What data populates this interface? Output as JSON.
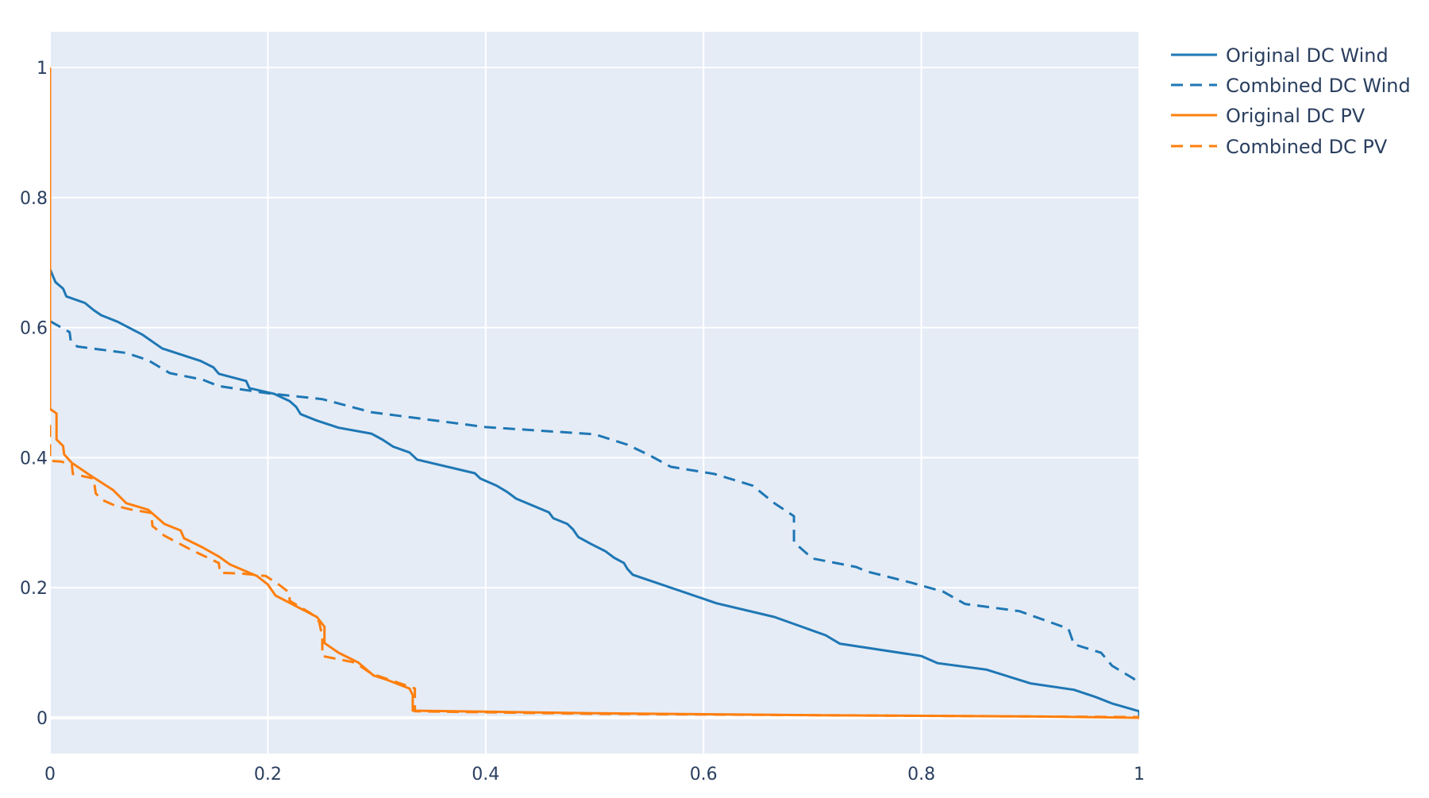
{
  "chart_data": {
    "type": "line",
    "title": "",
    "xlabel": "",
    "ylabel": "",
    "xlim": [
      0,
      1
    ],
    "ylim": [
      -0.055,
      1.055
    ],
    "grid": true,
    "legend_position": "top-right",
    "colors": {
      "wind": "#1f77b4",
      "pv": "#ff7f0e",
      "plot_background": "#e5ecf6",
      "grid": "#ffffff",
      "text": "#2a3f5f"
    },
    "x_ticks": [
      {
        "value": 0,
        "label": "0"
      },
      {
        "value": 0.2,
        "label": "0.2"
      },
      {
        "value": 0.4,
        "label": "0.4"
      },
      {
        "value": 0.6,
        "label": "0.6"
      },
      {
        "value": 0.8,
        "label": "0.8"
      },
      {
        "value": 1,
        "label": "1"
      }
    ],
    "y_ticks": [
      {
        "value": 0,
        "label": "0"
      },
      {
        "value": 0.2,
        "label": "0.2"
      },
      {
        "value": 0.4,
        "label": "0.4"
      },
      {
        "value": 0.6,
        "label": "0.6"
      },
      {
        "value": 0.8,
        "label": "0.8"
      },
      {
        "value": 1,
        "label": "1"
      }
    ],
    "series": [
      {
        "name": "Original DC Wind",
        "color": "#1f77b4",
        "dash": "solid",
        "points": [
          [
            0,
            0.69
          ],
          [
            0.005,
            0.67
          ],
          [
            0.012,
            0.66
          ],
          [
            0.015,
            0.648
          ],
          [
            0.032,
            0.638
          ],
          [
            0.04,
            0.627
          ],
          [
            0.047,
            0.619
          ],
          [
            0.062,
            0.609
          ],
          [
            0.085,
            0.589
          ],
          [
            0.103,
            0.568
          ],
          [
            0.138,
            0.549
          ],
          [
            0.15,
            0.539
          ],
          [
            0.155,
            0.529
          ],
          [
            0.18,
            0.518
          ],
          [
            0.183,
            0.507
          ],
          [
            0.206,
            0.498
          ],
          [
            0.22,
            0.487
          ],
          [
            0.226,
            0.478
          ],
          [
            0.23,
            0.467
          ],
          [
            0.245,
            0.457
          ],
          [
            0.265,
            0.446
          ],
          [
            0.295,
            0.437
          ],
          [
            0.305,
            0.428
          ],
          [
            0.315,
            0.417
          ],
          [
            0.33,
            0.408
          ],
          [
            0.337,
            0.397
          ],
          [
            0.39,
            0.376
          ],
          [
            0.395,
            0.368
          ],
          [
            0.41,
            0.357
          ],
          [
            0.42,
            0.347
          ],
          [
            0.428,
            0.337
          ],
          [
            0.458,
            0.316
          ],
          [
            0.462,
            0.307
          ],
          [
            0.475,
            0.298
          ],
          [
            0.48,
            0.29
          ],
          [
            0.485,
            0.278
          ],
          [
            0.497,
            0.267
          ],
          [
            0.51,
            0.256
          ],
          [
            0.518,
            0.246
          ],
          [
            0.527,
            0.238
          ],
          [
            0.53,
            0.229
          ],
          [
            0.535,
            0.22
          ],
          [
            0.612,
            0.176
          ],
          [
            0.665,
            0.155
          ],
          [
            0.712,
            0.127
          ],
          [
            0.725,
            0.114
          ],
          [
            0.8,
            0.095
          ],
          [
            0.815,
            0.084
          ],
          [
            0.86,
            0.074
          ],
          [
            0.9,
            0.053
          ],
          [
            0.94,
            0.043
          ],
          [
            0.96,
            0.032
          ],
          [
            0.975,
            0.022
          ],
          [
            1,
            0.01
          ],
          [
            1,
            0
          ]
        ]
      },
      {
        "name": "Combined DC Wind",
        "color": "#1f77b4",
        "dash": "dash",
        "points": [
          [
            0,
            0.61
          ],
          [
            0.018,
            0.593
          ],
          [
            0.019,
            0.58
          ],
          [
            0.025,
            0.571
          ],
          [
            0.07,
            0.561
          ],
          [
            0.09,
            0.55
          ],
          [
            0.11,
            0.53
          ],
          [
            0.14,
            0.52
          ],
          [
            0.155,
            0.51
          ],
          [
            0.2,
            0.499
          ],
          [
            0.25,
            0.49
          ],
          [
            0.295,
            0.47
          ],
          [
            0.4,
            0.447
          ],
          [
            0.5,
            0.436
          ],
          [
            0.53,
            0.42
          ],
          [
            0.55,
            0.404
          ],
          [
            0.57,
            0.386
          ],
          [
            0.61,
            0.375
          ],
          [
            0.645,
            0.357
          ],
          [
            0.665,
            0.33
          ],
          [
            0.683,
            0.31
          ],
          [
            0.683,
            0.27
          ],
          [
            0.7,
            0.245
          ],
          [
            0.74,
            0.232
          ],
          [
            0.75,
            0.225
          ],
          [
            0.79,
            0.208
          ],
          [
            0.82,
            0.194
          ],
          [
            0.84,
            0.175
          ],
          [
            0.89,
            0.164
          ],
          [
            0.935,
            0.137
          ],
          [
            0.94,
            0.113
          ],
          [
            0.965,
            0.1
          ],
          [
            0.975,
            0.08
          ],
          [
            0.995,
            0.06
          ],
          [
            1,
            0.05
          ]
        ]
      },
      {
        "name": "Original DC PV",
        "color": "#ff7f0e",
        "dash": "solid",
        "points": [
          [
            0,
            1
          ],
          [
            0,
            0.475
          ],
          [
            0.006,
            0.468
          ],
          [
            0.006,
            0.428
          ],
          [
            0.012,
            0.418
          ],
          [
            0.013,
            0.405
          ],
          [
            0.02,
            0.392
          ],
          [
            0.035,
            0.375
          ],
          [
            0.058,
            0.35
          ],
          [
            0.07,
            0.33
          ],
          [
            0.09,
            0.32
          ],
          [
            0.105,
            0.298
          ],
          [
            0.12,
            0.288
          ],
          [
            0.123,
            0.276
          ],
          [
            0.14,
            0.262
          ],
          [
            0.155,
            0.248
          ],
          [
            0.165,
            0.236
          ],
          [
            0.176,
            0.228
          ],
          [
            0.19,
            0.218
          ],
          [
            0.2,
            0.205
          ],
          [
            0.207,
            0.188
          ],
          [
            0.245,
            0.155
          ],
          [
            0.252,
            0.14
          ],
          [
            0.252,
            0.115
          ],
          [
            0.265,
            0.1
          ],
          [
            0.283,
            0.085
          ],
          [
            0.297,
            0.065
          ],
          [
            0.31,
            0.058
          ],
          [
            0.33,
            0.045
          ],
          [
            0.333,
            0.035
          ],
          [
            0.333,
            0.011
          ],
          [
            0.5,
            0.007
          ],
          [
            0.7,
            0.004
          ],
          [
            0.9,
            0.002
          ],
          [
            1,
            0
          ]
        ]
      },
      {
        "name": "Combined DC PV",
        "color": "#ff7f0e",
        "dash": "dash",
        "points": [
          [
            0,
            0.45
          ],
          [
            0,
            0.395
          ],
          [
            0.01,
            0.394
          ],
          [
            0.02,
            0.39
          ],
          [
            0.021,
            0.375
          ],
          [
            0.04,
            0.368
          ],
          [
            0.042,
            0.345
          ],
          [
            0.048,
            0.335
          ],
          [
            0.06,
            0.326
          ],
          [
            0.075,
            0.32
          ],
          [
            0.093,
            0.315
          ],
          [
            0.094,
            0.295
          ],
          [
            0.105,
            0.28
          ],
          [
            0.13,
            0.258
          ],
          [
            0.155,
            0.238
          ],
          [
            0.156,
            0.223
          ],
          [
            0.175,
            0.222
          ],
          [
            0.198,
            0.218
          ],
          [
            0.21,
            0.205
          ],
          [
            0.22,
            0.192
          ],
          [
            0.22,
            0.18
          ],
          [
            0.24,
            0.16
          ],
          [
            0.247,
            0.148
          ],
          [
            0.25,
            0.125
          ],
          [
            0.25,
            0.095
          ],
          [
            0.28,
            0.085
          ],
          [
            0.295,
            0.068
          ],
          [
            0.33,
            0.048
          ],
          [
            0.335,
            0.045
          ],
          [
            0.335,
            0.01
          ],
          [
            0.5,
            0.006
          ],
          [
            0.8,
            0.003
          ],
          [
            1,
            0.001
          ]
        ]
      }
    ]
  }
}
